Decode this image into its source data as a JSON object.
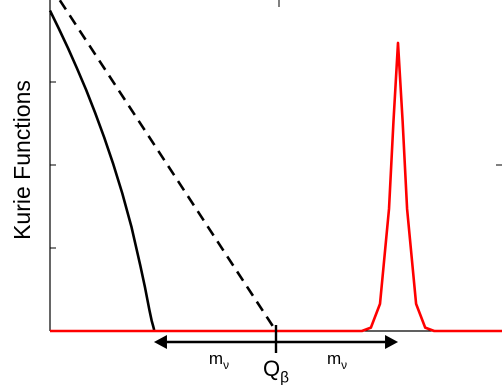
{
  "chart_data": {
    "type": "line",
    "ylabel": "Kurie Functions",
    "markers": {
      "q_label": "Q",
      "q_sub": "β",
      "m_label": "m",
      "m_sub": "ν"
    },
    "grid": false,
    "legend": "none",
    "xlim": [
      0,
      10
    ],
    "ylim": [
      0,
      10
    ],
    "endpoints": {
      "q_beta": 5.0,
      "mass_endpoint": 2.3,
      "upper_endpoint": 7.7
    },
    "series": [
      {
        "style": "solid",
        "color": "#000000",
        "x": [
          0.0,
          0.2,
          0.4,
          0.6,
          0.8,
          1.0,
          1.2,
          1.4,
          1.6,
          1.8,
          2.0,
          2.1,
          2.2,
          2.25,
          2.28,
          2.3,
          2.3
        ],
        "y": [
          9.45,
          8.91,
          8.34,
          7.74,
          7.11,
          6.43,
          5.71,
          4.92,
          4.06,
          3.08,
          1.92,
          1.3,
          0.62,
          0.3,
          0.15,
          0.05,
          0.0
        ]
      },
      {
        "style": "dashed",
        "color": "#000000",
        "x": [
          0.0,
          5.0
        ],
        "y": [
          10.2,
          0.0
        ]
      },
      {
        "style": "solid",
        "color": "#ff0000",
        "x": [
          0.0,
          6.9,
          7.1,
          7.3,
          7.5,
          7.6,
          7.7,
          7.8,
          7.9,
          8.1,
          8.3,
          8.5,
          8.7,
          10.0
        ],
        "y": [
          0.0,
          0.0,
          0.1,
          0.8,
          3.6,
          6.2,
          8.5,
          6.2,
          3.6,
          0.8,
          0.1,
          0.0,
          0.0,
          0.0
        ]
      }
    ]
  }
}
